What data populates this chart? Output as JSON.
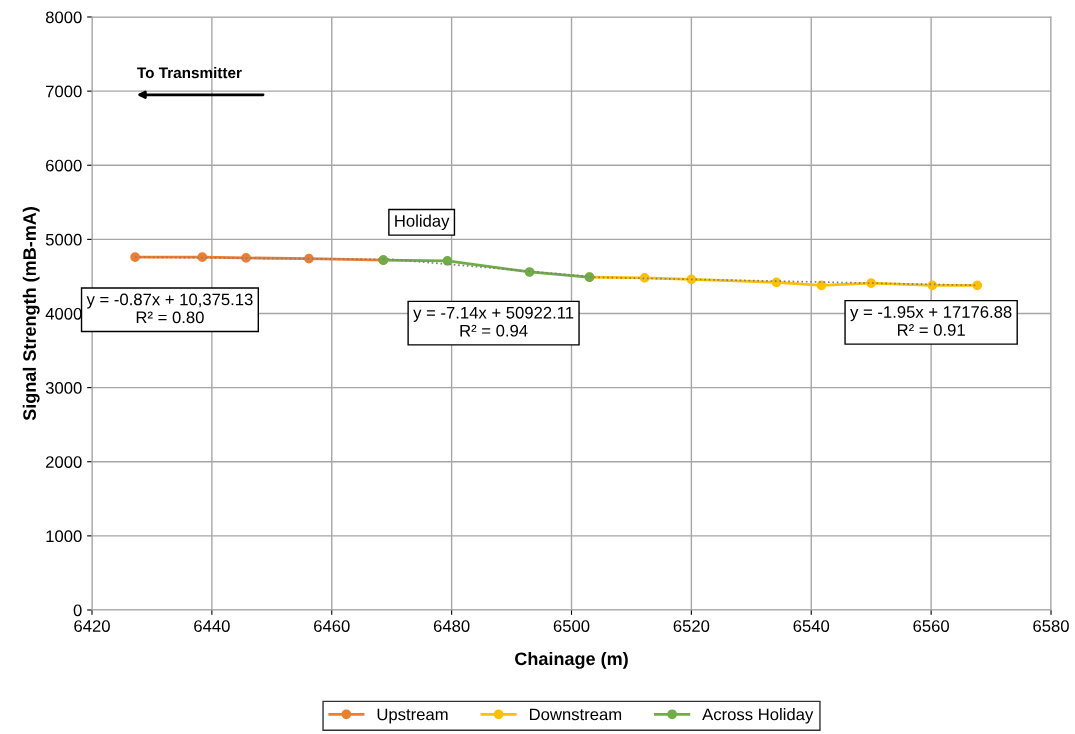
{
  "chart_data": {
    "type": "line",
    "xlabel": "Chainage (m)",
    "ylabel": "Signal Strength (mB-mA)",
    "xlim": [
      6420,
      6580
    ],
    "xticks": [
      6420,
      6440,
      6460,
      6480,
      6500,
      6520,
      6540,
      6560,
      6580
    ],
    "ylim": [
      0,
      8000
    ],
    "yticks": [
      0,
      1000,
      2000,
      3000,
      4000,
      5000,
      6000,
      7000,
      8000
    ],
    "grid": true,
    "legend": "bottom",
    "marker": "circle",
    "line_style": "solid",
    "series": [
      {
        "name": "Upstream",
        "color": "#ed7d31",
        "x": [
          6427.2,
          6438.4,
          6445.7,
          6456.2,
          6468.6
        ],
        "values": [
          4760,
          4760,
          4750,
          4740,
          4720
        ]
      },
      {
        "name": "Downstream",
        "color": "#ffc000",
        "x": [
          6503,
          6512.2,
          6520,
          6534.2,
          6541.7,
          6550,
          6560.2,
          6567.7
        ],
        "values": [
          4490,
          4480,
          4460,
          4420,
          4380,
          4410,
          4380,
          4380
        ]
      },
      {
        "name": "Across Holiday",
        "color": "#70ad47",
        "x": [
          6468.6,
          6479.3,
          6493,
          6503
        ],
        "values": [
          4720,
          4710,
          4560,
          4490
        ]
      },
      {
        "type": "line",
        "color": "#7f7f7f",
        "marker": "none",
        "line_style": "dotted",
        "x": [
          6427.2,
          6468.6
        ],
        "values": [
          4760,
          4730
        ]
      },
      {
        "type": "line",
        "color": "#7f7f7f",
        "marker": "none",
        "line_style": "dotted",
        "x": [
          6468.6,
          6503
        ],
        "values": [
          4740,
          4500
        ]
      },
      {
        "type": "line",
        "color": "#7f7f7f",
        "marker": "none",
        "line_style": "dotted",
        "x": [
          6503,
          6567.7
        ],
        "values": [
          4490,
          4380
        ]
      }
    ],
    "annotations": [
      "To Transmitter",
      "Holiday",
      "y = -0.87x + 10,375.13\nR² = 0.80",
      "y = -7.14x + 50922.11\nR² = 0.94",
      "y = -1.95x + 17176.88\nR² = 0.91"
    ]
  }
}
